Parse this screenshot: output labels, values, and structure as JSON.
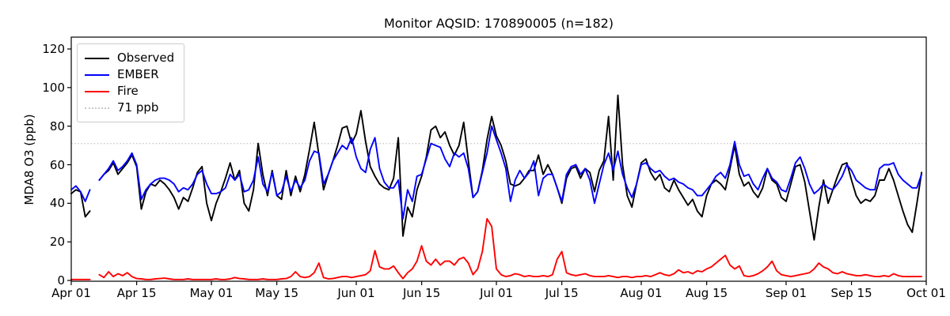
{
  "title": "Monitor AQSID: 170890005 (n=182)",
  "chart_data": {
    "type": "line",
    "title": "Monitor AQSID: 170890005 (n=182)",
    "xlabel": "",
    "ylabel": "MDA8 O3 (ppb)",
    "ylim": [
      0,
      126
    ],
    "y_ticks": [
      0,
      20,
      40,
      60,
      80,
      100,
      120
    ],
    "x_tick_labels": [
      "Apr 01",
      "Apr 15",
      "May 01",
      "May 15",
      "Jun 01",
      "Jun 15",
      "Jul 01",
      "Jul 15",
      "Aug 01",
      "Aug 15",
      "Sep 01",
      "Sep 15",
      "Oct 01"
    ],
    "x_tick_day_index": [
      0,
      14,
      30,
      44,
      61,
      75,
      91,
      105,
      122,
      136,
      153,
      167,
      183
    ],
    "x_days_total": 183,
    "grid": false,
    "legend_position": "upper left",
    "threshold": {
      "label": "71 ppb",
      "value": 71,
      "color": "#c9c9c9",
      "style": "dotted"
    },
    "series": [
      {
        "name": "Observed",
        "color": "#000000",
        "values": [
          45,
          47,
          46,
          33,
          36,
          null,
          52,
          55,
          57,
          61,
          55,
          58,
          61,
          65,
          59,
          37,
          46,
          50,
          49,
          52,
          50,
          47,
          43,
          37,
          43,
          41,
          48,
          56,
          59,
          40,
          31,
          40,
          46,
          53,
          61,
          52,
          57,
          40,
          36,
          47,
          71,
          55,
          44,
          57,
          44,
          42,
          57,
          44,
          54,
          46,
          55,
          68,
          82,
          65,
          47,
          55,
          62,
          70,
          79,
          80,
          71,
          76,
          88,
          72,
          59,
          54,
          50,
          48,
          47,
          53,
          74,
          23,
          38,
          33,
          47,
          54,
          64,
          78,
          80,
          74,
          77,
          70,
          65,
          70,
          82,
          62,
          43,
          46,
          57,
          73,
          85,
          75,
          70,
          62,
          50,
          49,
          50,
          53,
          57,
          57,
          65,
          55,
          60,
          55,
          48,
          40,
          53,
          58,
          59,
          53,
          58,
          56,
          46,
          57,
          62,
          85,
          52,
          96,
          60,
          44,
          38,
          50,
          61,
          63,
          56,
          52,
          55,
          48,
          46,
          52,
          47,
          43,
          39,
          42,
          36,
          33,
          44,
          50,
          52,
          50,
          47,
          58,
          70,
          55,
          49,
          51,
          46,
          43,
          48,
          58,
          52,
          50,
          43,
          41,
          50,
          59,
          60,
          51,
          36,
          21,
          38,
          52,
          40,
          47,
          54,
          60,
          61,
          52,
          44,
          40,
          42,
          41,
          44,
          52,
          52,
          58,
          52,
          44,
          36,
          29,
          25,
          40,
          56
        ]
      },
      {
        "name": "EMBER",
        "color": "#0000ff",
        "values": [
          47,
          49,
          46,
          41,
          47,
          null,
          52,
          55,
          58,
          62,
          57,
          59,
          62,
          66,
          60,
          42,
          47,
          50,
          52,
          53,
          53,
          52,
          50,
          46,
          48,
          47,
          50,
          55,
          57,
          50,
          45,
          45,
          46,
          48,
          55,
          52,
          55,
          46,
          47,
          52,
          64,
          50,
          46,
          56,
          44,
          46,
          54,
          46,
          52,
          48,
          52,
          62,
          67,
          66,
          50,
          55,
          62,
          66,
          70,
          68,
          74,
          64,
          58,
          56,
          68,
          74,
          58,
          51,
          48,
          48,
          52,
          32,
          47,
          41,
          54,
          55,
          63,
          71,
          70,
          69,
          63,
          59,
          66,
          64,
          66,
          58,
          43,
          46,
          56,
          66,
          80,
          73,
          66,
          58,
          41,
          52,
          57,
          53,
          56,
          62,
          44,
          53,
          55,
          55,
          48,
          41,
          55,
          59,
          60,
          55,
          58,
          52,
          40,
          50,
          60,
          66,
          57,
          67,
          55,
          48,
          43,
          50,
          60,
          61,
          58,
          56,
          57,
          54,
          52,
          53,
          51,
          50,
          48,
          47,
          44,
          44,
          47,
          50,
          54,
          56,
          53,
          60,
          72,
          60,
          54,
          55,
          50,
          47,
          53,
          58,
          53,
          51,
          47,
          46,
          53,
          61,
          64,
          58,
          50,
          45,
          47,
          50,
          48,
          47,
          50,
          54,
          60,
          57,
          52,
          50,
          48,
          47,
          47,
          58,
          60,
          60,
          61,
          55,
          52,
          50,
          48,
          48,
          55
        ]
      },
      {
        "name": "Fire",
        "color": "#ff0000",
        "values": [
          0.5,
          0.5,
          0.5,
          0.5,
          0.5,
          null,
          3,
          1.5,
          4.5,
          2,
          3.5,
          2.5,
          4,
          2,
          1,
          0.8,
          0.5,
          0.5,
          0.8,
          1,
          1.2,
          0.8,
          0.5,
          0.5,
          0.5,
          0.8,
          0.5,
          0.5,
          0.5,
          0.5,
          0.5,
          0.8,
          0.5,
          0.5,
          0.8,
          1.5,
          1,
          0.8,
          0.5,
          0.5,
          0.5,
          0.8,
          0.5,
          0.5,
          0.5,
          0.8,
          1,
          2,
          4.5,
          2,
          1.5,
          2,
          4,
          9,
          1.5,
          0.8,
          1,
          1.5,
          2,
          2,
          1.5,
          2,
          2.5,
          3,
          5,
          15.5,
          7,
          6,
          6,
          7.5,
          4,
          1,
          4,
          6,
          10,
          18,
          10,
          8,
          11,
          8,
          10,
          10,
          8,
          11,
          12,
          9,
          3,
          6,
          15,
          32,
          28,
          6,
          3,
          2,
          2.5,
          3.5,
          3,
          2,
          2.5,
          2,
          2,
          2.5,
          2,
          3,
          11,
          15,
          4,
          3,
          2.5,
          3,
          3.5,
          2.5,
          2,
          2,
          2,
          2.5,
          2,
          1.5,
          2,
          2,
          1.5,
          2,
          2,
          2.5,
          2,
          3,
          4,
          3,
          2.5,
          3.5,
          5.5,
          4,
          4.5,
          3.5,
          5,
          4.5,
          6,
          7,
          9,
          11,
          13,
          8,
          6,
          7.5,
          2.5,
          2,
          2.5,
          3.5,
          5,
          7,
          10,
          5,
          3,
          2.5,
          2,
          2.5,
          3,
          3.5,
          4,
          6,
          9,
          7,
          6,
          4,
          3.5,
          4.5,
          3.5,
          3,
          2.5,
          2.5,
          3,
          2.5,
          2,
          2,
          2.5,
          2,
          3.5,
          2.5,
          2,
          2,
          2,
          2,
          2
        ]
      }
    ],
    "legend_entries": [
      "Observed",
      "EMBER",
      "Fire",
      "71 ppb"
    ]
  }
}
